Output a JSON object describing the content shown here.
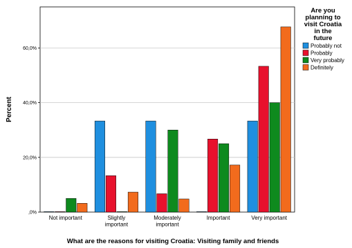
{
  "chart_data": {
    "type": "bar",
    "title": "",
    "xlabel": "What are the reasons for visiting Croatia: Visiting family and friends",
    "ylabel": "Percent",
    "ylim": [
      0,
      75
    ],
    "yticks": [
      0,
      20,
      40,
      60
    ],
    "ytick_labels": [
      ",0%",
      "20,0%",
      "40,0%",
      "60,0%"
    ],
    "grid": "horizontal",
    "legend_placement": "top-right",
    "legend_title": [
      "Are you",
      "planning to",
      "visit Croatia",
      "in the",
      "future"
    ],
    "categories": [
      [
        "Not important"
      ],
      [
        "Slightly",
        "important"
      ],
      [
        "Moderately",
        "important"
      ],
      [
        "Important"
      ],
      [
        "Very important"
      ]
    ],
    "series": [
      {
        "name": "Probably not",
        "color": "#1f8fdf",
        "values": [
          0,
          33.3,
          33.3,
          0,
          33.3
        ]
      },
      {
        "name": "Probably",
        "color": "#e8112d",
        "values": [
          0,
          13.3,
          6.7,
          26.7,
          53.3
        ]
      },
      {
        "name": "Very probably",
        "color": "#0e8a1e",
        "values": [
          5.0,
          0,
          30.0,
          25.0,
          40.0
        ]
      },
      {
        "name": "Definitely",
        "color": "#f26b1d",
        "values": [
          3.2,
          7.3,
          4.8,
          17.2,
          67.7
        ]
      }
    ]
  }
}
